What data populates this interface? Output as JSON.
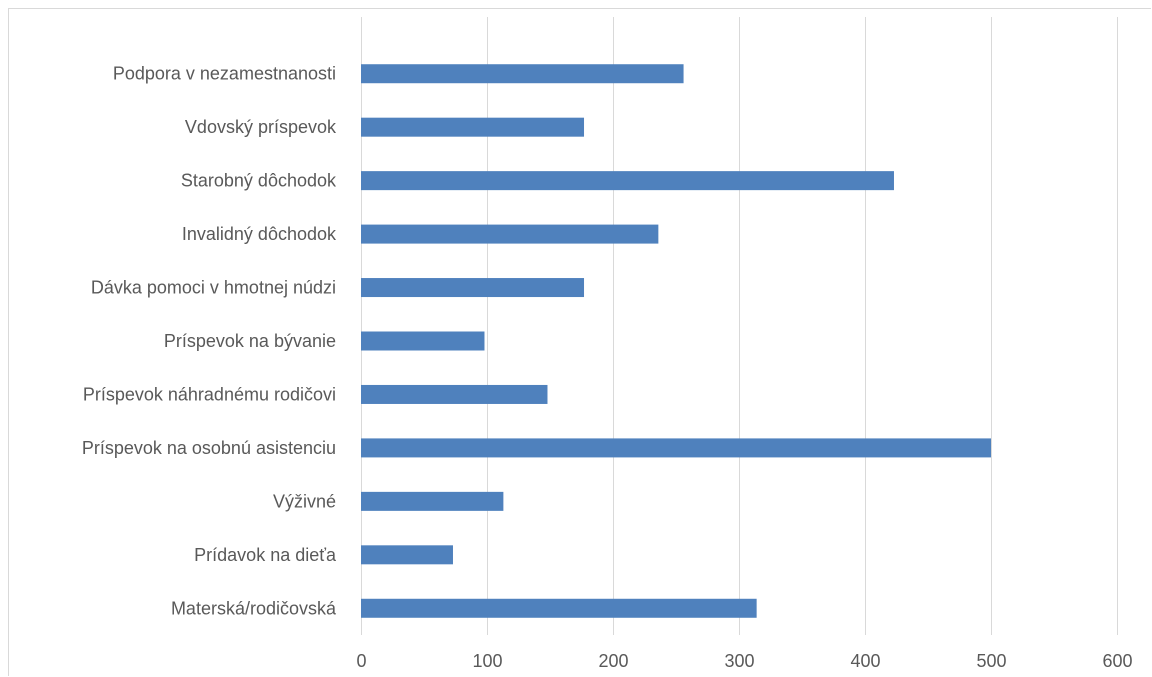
{
  "chart_data": {
    "type": "bar",
    "orientation": "horizontal",
    "title": "",
    "xlabel": "",
    "ylabel": "",
    "categories": [
      "Podpora v nezamestnanosti",
      "Vdovský príspevok",
      "Starobný dôchodok",
      "Invalidný dôchodok",
      "Dávka pomoci v hmotnej núdzi",
      "Príspevok na bývanie",
      "Príspevok náhradnému rodičovi",
      "Príspevok na osobnú asistenciu",
      "Výživné",
      "Prídavok na dieťa",
      "Materská/rodičovská"
    ],
    "values": [
      256,
      177,
      423,
      236,
      177,
      98,
      148,
      500,
      113,
      73,
      314
    ],
    "xlim": [
      0,
      600
    ],
    "x_ticks": [
      "0",
      "100",
      "200",
      "300",
      "400",
      "500",
      "600"
    ],
    "grid": true,
    "legend": "none",
    "bar_color": "#4f81bd"
  }
}
